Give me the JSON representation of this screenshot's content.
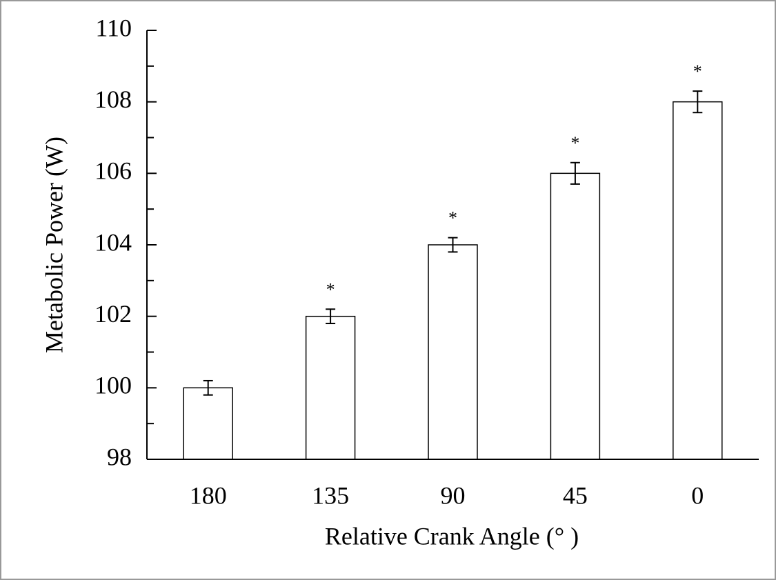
{
  "chart_data": {
    "type": "bar",
    "x_label": "Relative Crank Angle (° )",
    "y_label": "Metabolic Power (W)",
    "categories": [
      "180",
      "135",
      "90",
      "45",
      "0"
    ],
    "values": [
      100,
      102,
      104,
      106,
      108
    ],
    "errors": [
      0.2,
      0.2,
      0.2,
      0.3,
      0.3
    ],
    "annotations": [
      null,
      "*",
      "*",
      "*",
      "*"
    ],
    "color": "#ffffff",
    "edge_color": "#000000",
    "ylim": [
      98,
      110
    ],
    "yticks": [
      98,
      100,
      102,
      104,
      106,
      108,
      110
    ],
    "yminorticks": [
      99,
      101,
      103,
      105,
      107,
      109
    ],
    "grid": false
  }
}
